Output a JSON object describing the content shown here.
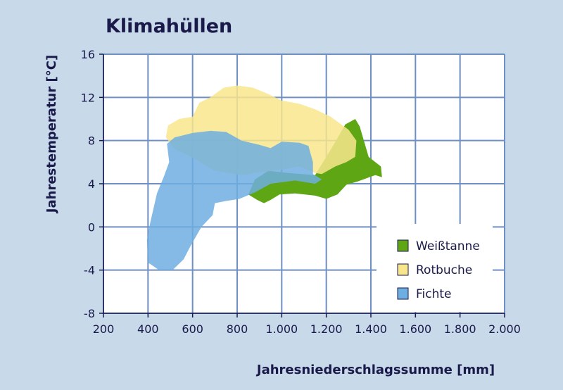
{
  "chart_data": {
    "type": "area",
    "title": "Klimahüllen",
    "xlabel": "Jahresniederschlagssumme [mm]",
    "ylabel": "Jahrestemperatur [°C]",
    "xlim": [
      200,
      2000
    ],
    "ylim": [
      -8,
      16
    ],
    "x_ticks": [
      200,
      400,
      600,
      800,
      1000,
      1200,
      1400,
      1600,
      1800,
      2000
    ],
    "x_tick_labels": [
      "200",
      "400",
      "600",
      "800",
      "1.000",
      "1.200",
      "1.400",
      "1.600",
      "1.800",
      "2.000"
    ],
    "y_ticks": [
      -8,
      -4,
      0,
      4,
      8,
      12,
      16
    ],
    "y_tick_labels": [
      "-8",
      "-4",
      "0",
      "4",
      "8",
      "12",
      "16"
    ],
    "grid": true,
    "legend_position": "bottom-right",
    "series": [
      {
        "name": "Weißtanne",
        "color": "#5fa615",
        "polygon": [
          [
            940,
            5.2
          ],
          [
            1030,
            5.0
          ],
          [
            1150,
            4.8
          ],
          [
            1230,
            7.5
          ],
          [
            1285,
            9.5
          ],
          [
            1330,
            10.0
          ],
          [
            1350,
            9.3
          ],
          [
            1390,
            6.5
          ],
          [
            1420,
            6.0
          ],
          [
            1445,
            5.6
          ],
          [
            1450,
            4.6
          ],
          [
            1420,
            4.8
          ],
          [
            1380,
            4.5
          ],
          [
            1340,
            4.2
          ],
          [
            1290,
            3.9
          ],
          [
            1250,
            3.0
          ],
          [
            1200,
            2.6
          ],
          [
            1150,
            2.9
          ],
          [
            1060,
            3.1
          ],
          [
            990,
            3.0
          ],
          [
            950,
            2.5
          ],
          [
            920,
            2.2
          ],
          [
            890,
            2.5
          ],
          [
            850,
            3.0
          ],
          [
            880,
            4.4
          ]
        ]
      },
      {
        "name": "Rotbuche",
        "color": "#f8e68c",
        "polygon": [
          [
            480,
            8.3
          ],
          [
            490,
            9.4
          ],
          [
            540,
            10.0
          ],
          [
            600,
            10.2
          ],
          [
            630,
            11.5
          ],
          [
            680,
            12.0
          ],
          [
            740,
            12.9
          ],
          [
            800,
            13.1
          ],
          [
            870,
            12.9
          ],
          [
            930,
            12.4
          ],
          [
            1000,
            11.7
          ],
          [
            1080,
            11.4
          ],
          [
            1150,
            10.9
          ],
          [
            1220,
            10.2
          ],
          [
            1300,
            9.0
          ],
          [
            1335,
            8.0
          ],
          [
            1330,
            6.5
          ],
          [
            1290,
            6.0
          ],
          [
            1240,
            5.6
          ],
          [
            1180,
            4.9
          ],
          [
            1150,
            5.0
          ],
          [
            1080,
            5.6
          ],
          [
            1000,
            5.3
          ],
          [
            880,
            5.0
          ],
          [
            820,
            4.8
          ],
          [
            700,
            5.2
          ],
          [
            600,
            6.4
          ],
          [
            520,
            7.2
          ]
        ]
      },
      {
        "name": "Fichte",
        "color": "#6faee0",
        "polygon": [
          [
            485,
            7.7
          ],
          [
            520,
            8.3
          ],
          [
            600,
            8.7
          ],
          [
            680,
            8.9
          ],
          [
            750,
            8.8
          ],
          [
            820,
            8.0
          ],
          [
            900,
            7.6
          ],
          [
            950,
            7.3
          ],
          [
            1000,
            7.9
          ],
          [
            1080,
            7.8
          ],
          [
            1120,
            7.5
          ],
          [
            1140,
            6.0
          ],
          [
            1140,
            4.9
          ],
          [
            1180,
            4.4
          ],
          [
            1150,
            4.0
          ],
          [
            1060,
            4.3
          ],
          [
            950,
            4.0
          ],
          [
            880,
            3.2
          ],
          [
            810,
            2.6
          ],
          [
            750,
            2.4
          ],
          [
            700,
            2.2
          ],
          [
            690,
            1.1
          ],
          [
            640,
            0.0
          ],
          [
            590,
            -1.8
          ],
          [
            560,
            -3.0
          ],
          [
            510,
            -4.0
          ],
          [
            450,
            -4.0
          ],
          [
            400,
            -3.3
          ],
          [
            395,
            -1.2
          ],
          [
            410,
            0.4
          ],
          [
            440,
            3.1
          ],
          [
            470,
            4.6
          ],
          [
            495,
            6.0
          ]
        ]
      }
    ]
  }
}
